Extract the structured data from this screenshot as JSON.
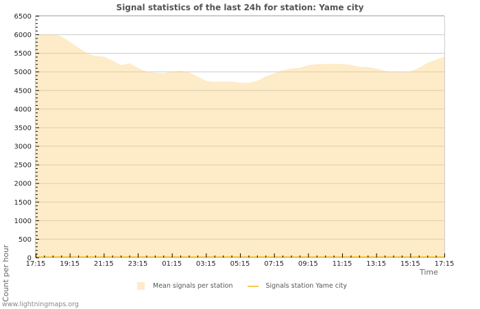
{
  "title": "Signal statistics of the last 24h for station: Yame city",
  "axes": {
    "ylabel": "Count per hour",
    "xlabel": "Time"
  },
  "legend": {
    "items": [
      {
        "label": "Mean signals per station",
        "type": "area",
        "color": "#feebc8"
      },
      {
        "label": "Signals station Yame city",
        "type": "line",
        "color": "#f5c94e"
      }
    ]
  },
  "footer": "www.lightningmaps.org",
  "colors": {
    "area_fill": "#feebc8",
    "line": "#f5c94e",
    "grid": "#cccccc",
    "grid_fill_line": "#d9c9a8",
    "axis": "#cccccc"
  },
  "chart_data": {
    "type": "area",
    "title": "Signal statistics of the last 24h for station: Yame city",
    "xlabel": "Time",
    "ylabel": "Count per hour",
    "ylim": [
      0,
      6500
    ],
    "yticks": [
      0,
      500,
      1000,
      1500,
      2000,
      2500,
      3000,
      3500,
      4000,
      4500,
      5000,
      5500,
      6000,
      6500
    ],
    "xticks": [
      "17:15",
      "19:15",
      "21:15",
      "23:15",
      "01:15",
      "03:15",
      "05:15",
      "07:15",
      "09:15",
      "11:15",
      "13:15",
      "15:15",
      "17:15"
    ],
    "grid": true,
    "legend_position": "bottom",
    "x": [
      "17:15",
      "17:45",
      "18:15",
      "18:45",
      "19:15",
      "19:45",
      "20:15",
      "20:45",
      "21:15",
      "21:45",
      "22:15",
      "22:45",
      "23:15",
      "23:45",
      "00:15",
      "00:45",
      "01:15",
      "01:45",
      "02:15",
      "02:45",
      "03:15",
      "03:45",
      "04:15",
      "04:45",
      "05:15",
      "05:45",
      "06:15",
      "06:45",
      "07:15",
      "07:45",
      "08:15",
      "08:45",
      "09:15",
      "09:45",
      "10:15",
      "10:45",
      "11:15",
      "11:45",
      "12:15",
      "12:45",
      "13:15",
      "13:45",
      "14:15",
      "14:45",
      "15:15",
      "15:45",
      "16:15",
      "16:45",
      "17:15"
    ],
    "series": [
      {
        "name": "Mean signals per station",
        "type": "area",
        "values": [
          5950,
          6000,
          6000,
          5950,
          5800,
          5650,
          5500,
          5420,
          5400,
          5300,
          5170,
          5220,
          5100,
          5000,
          4970,
          4950,
          5000,
          5020,
          4980,
          4870,
          4750,
          4730,
          4730,
          4730,
          4700,
          4700,
          4750,
          4870,
          4950,
          5030,
          5080,
          5100,
          5170,
          5200,
          5200,
          5210,
          5200,
          5180,
          5130,
          5120,
          5080,
          5020,
          4980,
          4980,
          5000,
          5100,
          5230,
          5320,
          5400
        ]
      },
      {
        "name": "Signals station Yame city",
        "type": "line",
        "values": [
          0,
          0,
          0,
          0,
          0,
          0,
          0,
          0,
          0,
          0,
          0,
          0,
          0,
          0,
          0,
          0,
          0,
          0,
          0,
          0,
          0,
          0,
          0,
          0,
          0,
          0,
          0,
          0,
          0,
          0,
          0,
          0,
          0,
          0,
          0,
          0,
          0,
          0,
          0,
          0,
          0,
          0,
          0,
          0,
          0,
          0,
          0,
          0,
          0
        ]
      }
    ]
  }
}
